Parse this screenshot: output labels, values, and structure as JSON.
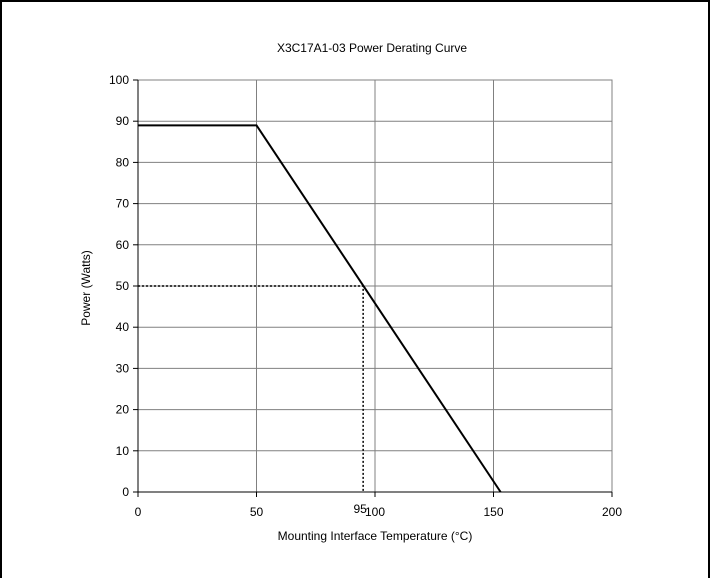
{
  "chart_data": {
    "type": "line",
    "title": "X3C17A1-03 Power Derating Curve",
    "xlabel": "Mounting Interface Temperature (°C)",
    "ylabel": "Power (Watts)",
    "xlim": [
      0,
      200
    ],
    "ylim": [
      0,
      100
    ],
    "xticks": [
      "0",
      "50",
      "100",
      "150",
      "200"
    ],
    "yticks": [
      "0",
      "10",
      "20",
      "30",
      "40",
      "50",
      "60",
      "70",
      "80",
      "90",
      "100"
    ],
    "grid": true,
    "series": [
      {
        "x": [
          0,
          50,
          153
        ],
        "y": [
          89,
          89,
          0
        ]
      }
    ],
    "reference_lines": [
      {
        "x": [
          0,
          95,
          95
        ],
        "y": [
          50,
          50,
          0
        ],
        "style": "dotted"
      }
    ],
    "annotations": [
      {
        "text": "95",
        "x": 95,
        "y": 0
      }
    ]
  }
}
